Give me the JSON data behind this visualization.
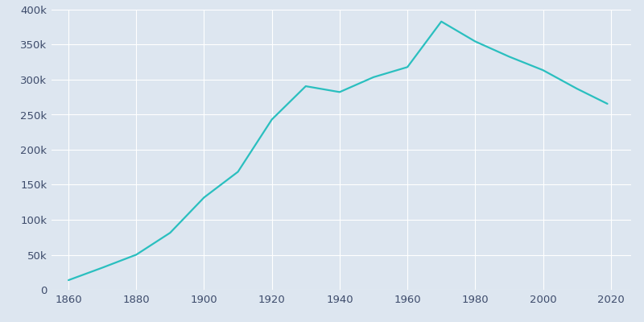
{
  "years": [
    1860,
    1870,
    1880,
    1890,
    1900,
    1910,
    1920,
    1930,
    1940,
    1950,
    1960,
    1970,
    1980,
    1990,
    2000,
    2010,
    2019
  ],
  "population": [
    13768,
    31584,
    50137,
    81434,
    131822,
    168497,
    243169,
    290718,
    282349,
    303616,
    318003,
    383062,
    354635,
    332943,
    313619,
    287208,
    265623
  ],
  "line_color": "#2ABFBF",
  "bg_color": "#DDE6F0",
  "grid_color": "#FFFFFF",
  "tick_color": "#3D4B6B",
  "ylim": [
    0,
    400000
  ],
  "yticks": [
    0,
    50000,
    100000,
    150000,
    200000,
    250000,
    300000,
    350000,
    400000
  ],
  "ytick_labels": [
    "0",
    "50k",
    "100k",
    "150k",
    "200k",
    "250k",
    "300k",
    "350k",
    "400k"
  ],
  "xticks": [
    1860,
    1880,
    1900,
    1920,
    1940,
    1960,
    1980,
    2000,
    2020
  ],
  "line_width": 1.6,
  "xlim_left": 1855,
  "xlim_right": 2026
}
